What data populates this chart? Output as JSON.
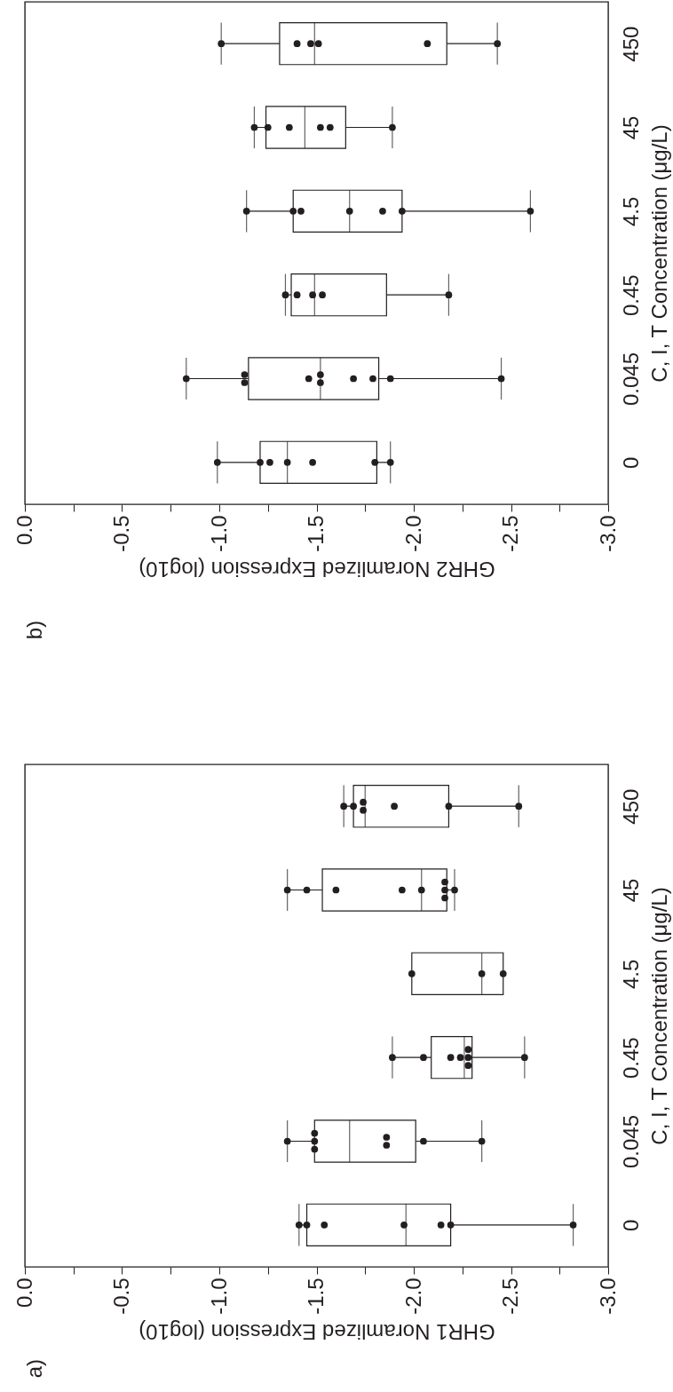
{
  "chart_data": [
    {
      "type": "box",
      "title": "a)",
      "orientation": "horizontal",
      "xlabel": "GHR1 Noramlized Expression (log10)",
      "ylabel": "C, I, T Concentration (μg/L)",
      "categories": [
        "450",
        "45",
        "4.5",
        "0.45",
        "0.045",
        "0"
      ],
      "xlim": [
        0,
        -3
      ],
      "xticks": [
        {
          "value": 0,
          "label": "0.0"
        },
        {
          "value": -0.25,
          "label": null
        },
        {
          "value": -0.5,
          "label": "-0.5"
        },
        {
          "value": -0.75,
          "label": null
        },
        {
          "value": -1,
          "label": "-1.0"
        },
        {
          "value": -1.25,
          "label": null
        },
        {
          "value": -1.5,
          "label": "-1.5"
        },
        {
          "value": -1.75,
          "label": null
        },
        {
          "value": -2,
          "label": "-2.0"
        },
        {
          "value": -2.25,
          "label": null
        },
        {
          "value": -2.5,
          "label": "-2.5"
        },
        {
          "value": -2.75,
          "label": null
        },
        {
          "value": -3,
          "label": "-3.0"
        }
      ],
      "boxes": [
        {
          "low": -2.54,
          "q1": -2.18,
          "median": -1.75,
          "q3": -1.69,
          "high": -1.64
        },
        {
          "low": -2.21,
          "q1": -2.17,
          "median": -2.04,
          "q3": -1.53,
          "high": -1.35
        },
        {
          "low": -2.46,
          "q1": -2.46,
          "median": -2.35,
          "q3": -1.99,
          "high": -1.99
        },
        {
          "low": -2.57,
          "q1": -2.3,
          "median": -2.26,
          "q3": -2.09,
          "high": -1.89
        },
        {
          "low": -2.35,
          "q1": -2.01,
          "median": -1.67,
          "q3": -1.49,
          "high": -1.35
        },
        {
          "low": -2.82,
          "q1": -2.19,
          "median": -1.96,
          "q3": -1.45,
          "high": -1.41
        }
      ],
      "series": [
        {
          "type": "scatter",
          "color": "#231f20",
          "x": [
            "0",
            "0",
            "0",
            "0",
            "0",
            "0",
            "0",
            "0.045",
            "0.045",
            "0.045",
            "0.045",
            "0.045",
            "0.045",
            "0.045",
            "0.045",
            "0.45",
            "0.45",
            "0.45",
            "0.45",
            "0.45",
            "0.45",
            "0.45",
            "0.45",
            "4.5",
            "4.5",
            "4.5",
            "45",
            "45",
            "45",
            "45",
            "45",
            "45",
            "45",
            "45",
            "45",
            "450",
            "450",
            "450",
            "450",
            "450",
            "450",
            "450"
          ],
          "values": [
            -1.41,
            -1.45,
            -1.54,
            -1.95,
            -2.14,
            -2.19,
            -2.82,
            -1.35,
            -1.49,
            -1.49,
            -1.49,
            -1.86,
            -1.86,
            -2.05,
            -2.35,
            -1.89,
            -2.05,
            -2.19,
            -2.24,
            -2.28,
            -2.28,
            -2.28,
            -2.57,
            -1.99,
            -2.35,
            -2.46,
            -1.35,
            -1.45,
            -1.6,
            -1.94,
            -2.04,
            -2.16,
            -2.16,
            -2.16,
            -2.21,
            -1.64,
            -1.69,
            -1.74,
            -1.74,
            -1.9,
            -2.18,
            -2.54
          ]
        }
      ],
      "marker": "circle"
    },
    {
      "type": "box",
      "title": "b)",
      "orientation": "horizontal",
      "xlabel": "GHR2 Noramlized Expression (log10)",
      "ylabel": "C, I, T Concentration (μg/L)",
      "categories": [
        "450",
        "45",
        "4.5",
        "0.45",
        "0.045",
        "0"
      ],
      "xlim": [
        0,
        -3
      ],
      "xticks": [
        {
          "value": 0,
          "label": "0.0"
        },
        {
          "value": -0.25,
          "label": null
        },
        {
          "value": -0.5,
          "label": "-0.5"
        },
        {
          "value": -0.75,
          "label": null
        },
        {
          "value": -1,
          "label": "-1.0"
        },
        {
          "value": -1.25,
          "label": null
        },
        {
          "value": -1.5,
          "label": "-1.5"
        },
        {
          "value": -1.75,
          "label": null
        },
        {
          "value": -2,
          "label": "-2.0"
        },
        {
          "value": -2.25,
          "label": null
        },
        {
          "value": -2.5,
          "label": "-2.5"
        },
        {
          "value": -2.75,
          "label": null
        },
        {
          "value": -3,
          "label": "-3.0"
        }
      ],
      "boxes": [
        {
          "low": -2.43,
          "q1": -2.17,
          "median": -1.49,
          "q3": -1.31,
          "high": -1.01
        },
        {
          "low": -1.89,
          "q1": -1.65,
          "median": -1.44,
          "q3": -1.24,
          "high": -1.18
        },
        {
          "low": -2.6,
          "q1": -1.94,
          "median": -1.67,
          "q3": -1.38,
          "high": -1.14
        },
        {
          "low": -2.18,
          "q1": -1.86,
          "median": -1.49,
          "q3": -1.37,
          "high": -1.34
        },
        {
          "low": -2.45,
          "q1": -1.82,
          "median": -1.52,
          "q3": -1.15,
          "high": -0.83
        },
        {
          "low": -1.88,
          "q1": -1.81,
          "median": -1.35,
          "q3": -1.21,
          "high": -0.99
        }
      ],
      "series": [
        {
          "type": "scatter",
          "color": "#231f20",
          "x": [
            "0",
            "0",
            "0",
            "0",
            "0",
            "0",
            "0",
            "0.045",
            "0.045",
            "0.045",
            "0.045",
            "0.045",
            "0.045",
            "0.045",
            "0.045",
            "0.045",
            "0.045",
            "0.45",
            "0.45",
            "0.45",
            "0.45",
            "0.45",
            "4.5",
            "4.5",
            "4.5",
            "4.5",
            "4.5",
            "4.5",
            "4.5",
            "45",
            "45",
            "45",
            "45",
            "45",
            "45",
            "450",
            "450",
            "450",
            "450",
            "450",
            "450"
          ],
          "values": [
            -0.99,
            -1.21,
            -1.26,
            -1.35,
            -1.48,
            -1.8,
            -1.88,
            -0.83,
            -1.13,
            -1.13,
            -1.46,
            -1.52,
            -1.52,
            -1.69,
            -1.79,
            -1.88,
            -2.45,
            -1.34,
            -1.4,
            -1.48,
            -1.53,
            -2.18,
            -1.14,
            -1.38,
            -1.42,
            -1.67,
            -1.84,
            -1.94,
            -2.6,
            -1.18,
            -1.25,
            -1.36,
            -1.52,
            -1.57,
            -1.89,
            -1.01,
            -1.4,
            -1.47,
            -1.51,
            -2.07,
            -2.43
          ]
        }
      ],
      "marker": "circle"
    }
  ]
}
